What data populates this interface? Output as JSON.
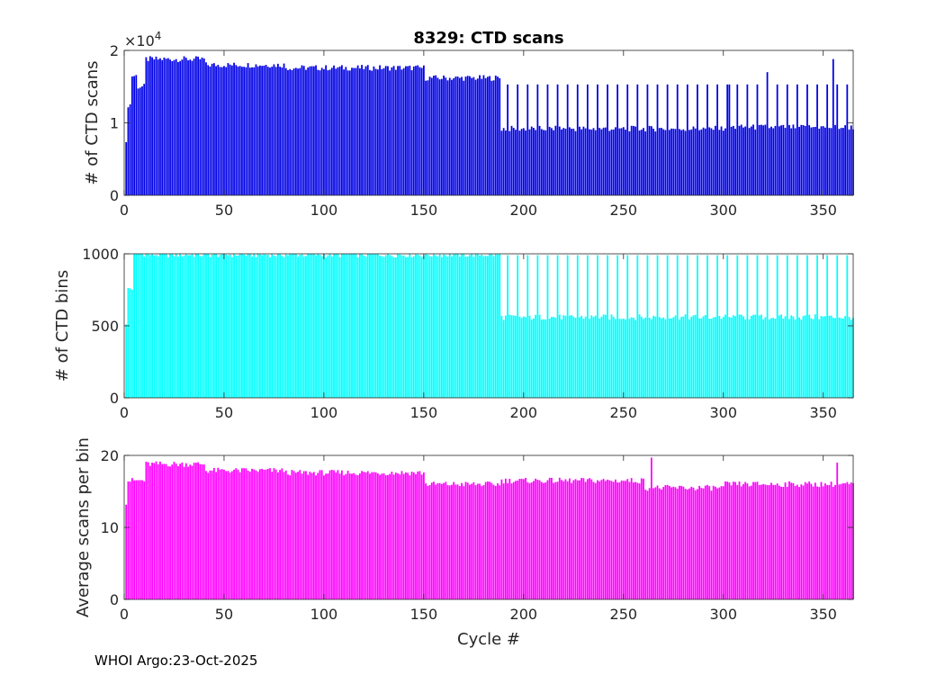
{
  "chart_data": [
    {
      "type": "bar",
      "title": "8329: CTD scans",
      "ylabel": "# of CTD scans",
      "xlabel": "",
      "xlim": [
        0,
        365
      ],
      "ylim": [
        0,
        20000
      ],
      "xticks": [
        "0",
        "50",
        "100",
        "150",
        "200",
        "250",
        "300",
        "350"
      ],
      "yticks": [
        "0",
        "1",
        "2"
      ],
      "exponent_base": "×10",
      "exponent_power": "4",
      "color": "#0000e6",
      "segments": [
        {
          "from": 1,
          "to": 1,
          "value": 7000
        },
        {
          "from": 2,
          "to": 3,
          "value": 12500
        },
        {
          "from": 4,
          "to": 6,
          "value": 16500
        },
        {
          "from": 7,
          "to": 10,
          "value": 15000
        },
        {
          "from": 11,
          "to": 40,
          "value": 18800
        },
        {
          "from": 41,
          "to": 80,
          "value": 18000
        },
        {
          "from": 81,
          "to": 150,
          "value": 17600
        },
        {
          "from": 151,
          "to": 188,
          "value": 16200
        },
        {
          "from": 189,
          "to": 300,
          "value": 9200
        },
        {
          "from": 301,
          "to": 365,
          "value": 9400
        }
      ],
      "spikes": [
        {
          "from": 192,
          "to": 365,
          "every": 5,
          "value": 15300
        }
      ],
      "spike_overrides": {
        "355": 18800,
        "303": 15300,
        "322": 17000
      }
    },
    {
      "type": "bar",
      "title": "",
      "ylabel": "# of CTD bins",
      "xlabel": "",
      "xlim": [
        0,
        365
      ],
      "ylim": [
        0,
        1000
      ],
      "xticks": [
        "0",
        "50",
        "100",
        "150",
        "200",
        "250",
        "300",
        "350"
      ],
      "yticks": [
        "0",
        "500",
        "1000"
      ],
      "color": "#00ffff",
      "segments": [
        {
          "from": 1,
          "to": 1,
          "value": 500
        },
        {
          "from": 2,
          "to": 4,
          "value": 760
        },
        {
          "from": 5,
          "to": 6,
          "value": 1000
        },
        {
          "from": 7,
          "to": 10,
          "value": 1000
        },
        {
          "from": 11,
          "to": 188,
          "value": 995
        },
        {
          "from": 189,
          "to": 365,
          "value": 560
        }
      ],
      "spikes": [
        {
          "from": 192,
          "to": 365,
          "every": 5,
          "value": 990
        }
      ],
      "spike_overrides": {}
    },
    {
      "type": "bar",
      "title": "",
      "ylabel": "Average scans per bin",
      "xlabel": "Cycle #",
      "xlim": [
        0,
        365
      ],
      "ylim": [
        0,
        20
      ],
      "xticks": [
        "0",
        "50",
        "100",
        "150",
        "200",
        "250",
        "300",
        "350"
      ],
      "yticks": [
        "0",
        "10",
        "20"
      ],
      "color": "#ff00ff",
      "segments": [
        {
          "from": 1,
          "to": 1,
          "value": 13.5
        },
        {
          "from": 2,
          "to": 10,
          "value": 16.5
        },
        {
          "from": 11,
          "to": 40,
          "value": 18.8
        },
        {
          "from": 41,
          "to": 80,
          "value": 17.9
        },
        {
          "from": 81,
          "to": 150,
          "value": 17.6
        },
        {
          "from": 151,
          "to": 188,
          "value": 16.0
        },
        {
          "from": 189,
          "to": 260,
          "value": 16.5
        },
        {
          "from": 261,
          "to": 300,
          "value": 15.5
        },
        {
          "from": 301,
          "to": 365,
          "value": 16.0
        }
      ],
      "spikes": [],
      "spike_overrides": {
        "264": 19.7,
        "357": 19.0
      }
    }
  ],
  "footer": "WHOI Argo:23-Oct-2025"
}
